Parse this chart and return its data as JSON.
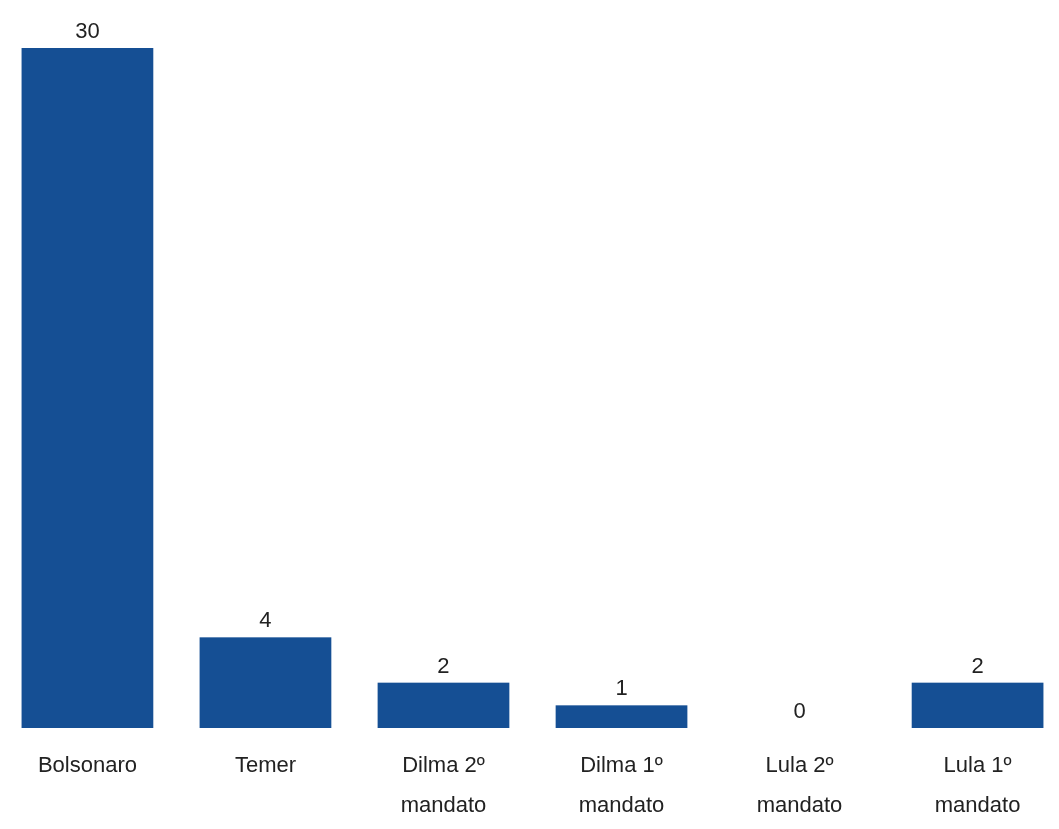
{
  "chart_data": {
    "type": "bar",
    "categories": [
      "Bolsonaro",
      "Temer",
      "Dilma 2º mandato",
      "Dilma 1º mandato",
      "Lula 2º mandato",
      "Lula 1º mandato"
    ],
    "values": [
      30,
      4,
      2,
      1,
      0,
      2
    ],
    "color": "#154f94",
    "data_labels": true
  }
}
